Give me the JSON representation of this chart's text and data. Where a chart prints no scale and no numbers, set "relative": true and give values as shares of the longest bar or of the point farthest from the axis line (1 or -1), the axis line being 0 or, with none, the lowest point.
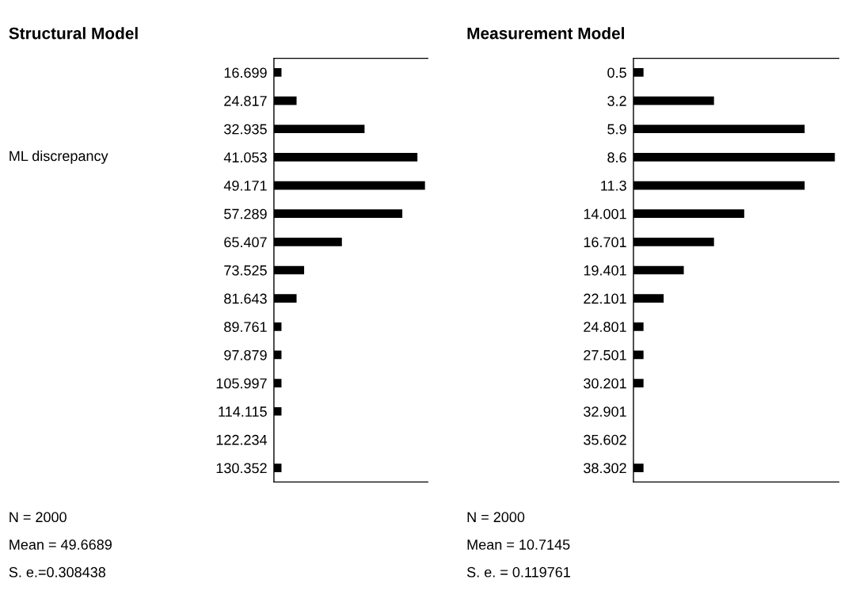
{
  "chart_data": [
    {
      "type": "bar",
      "orientation": "horizontal",
      "relative": true,
      "title": "Structural Model",
      "ylabel": "ML discrepancy",
      "categories": [
        "16.699",
        "24.817",
        "32.935",
        "41.053",
        "49.171",
        "57.289",
        "65.407",
        "73.525",
        "81.643",
        "89.761",
        "97.879",
        "105.997",
        "114.115",
        "122.234",
        "130.352"
      ],
      "values": [
        0.05,
        0.15,
        0.6,
        0.95,
        1,
        0.85,
        0.45,
        0.2,
        0.15,
        0.05,
        0.05,
        0.05,
        0.05,
        0,
        0.05
      ],
      "color": "#000000",
      "grid": false,
      "legend": false,
      "annotations": [
        "N = 2000",
        "Mean = 49.6689",
        "S. e.=0.308438"
      ]
    },
    {
      "type": "bar",
      "orientation": "horizontal",
      "relative": true,
      "title": "Measurement Model",
      "categories": [
        "0.5",
        "3.2",
        "5.9",
        "8.6",
        "11.3",
        "14.001",
        "16.701",
        "19.401",
        "22.101",
        "24.801",
        "27.501",
        "30.201",
        "32.901",
        "35.602",
        "38.302"
      ],
      "values": [
        0.05,
        0.4,
        0.85,
        1,
        0.85,
        0.55,
        0.4,
        0.25,
        0.15,
        0.05,
        0.05,
        0.05,
        0,
        0,
        0.05
      ],
      "color": "#000000",
      "grid": false,
      "legend": false,
      "annotations": [
        "N = 2000",
        "Mean = 10.7145",
        "S. e. = 0.119761"
      ]
    }
  ]
}
